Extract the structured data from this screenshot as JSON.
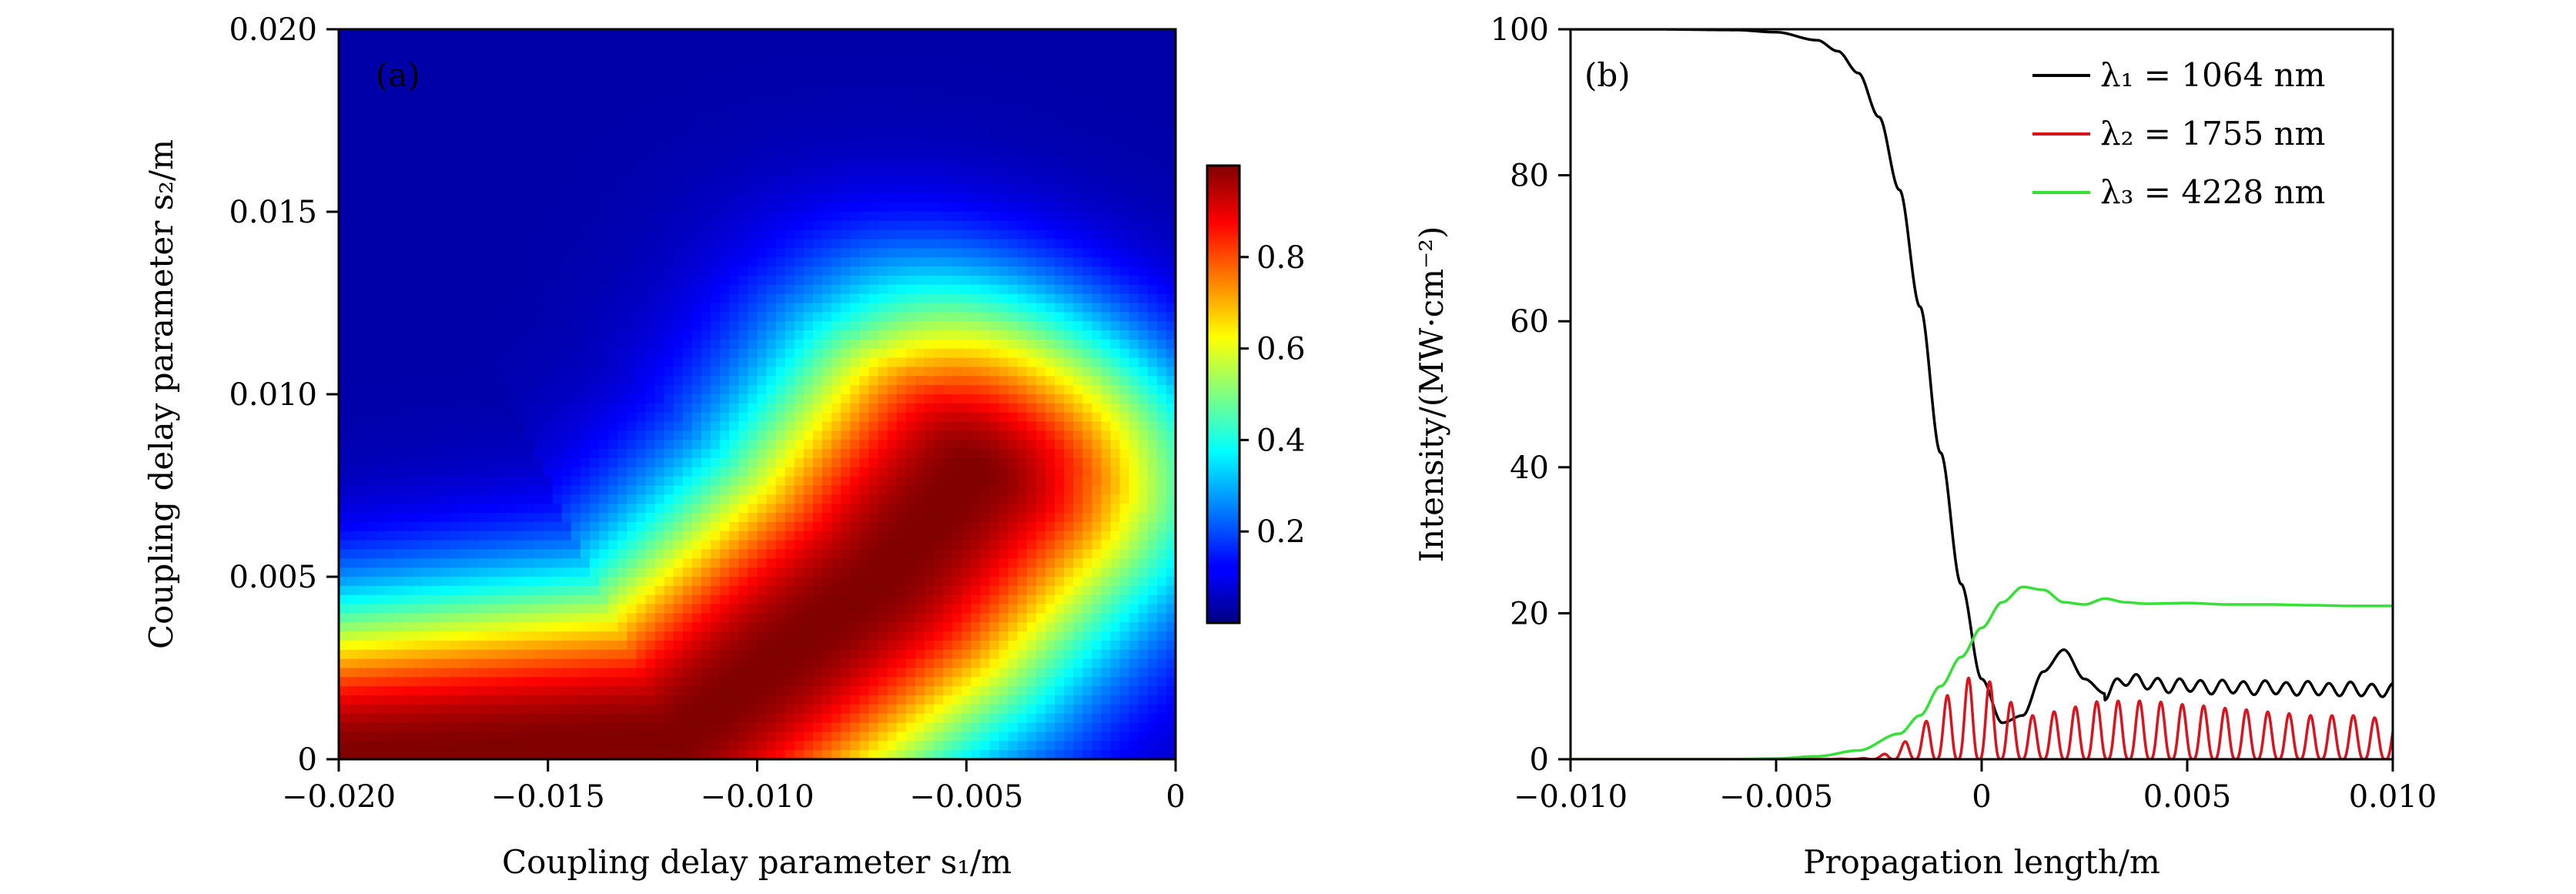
{
  "chart_data": [
    {
      "type": "heatmap",
      "panel_label": "(a)",
      "xlabel": "Coupling delay parameter s₁/m",
      "ylabel": "Coupling delay parameter s₂/m",
      "xlim": [
        -0.02,
        0
      ],
      "ylim": [
        0,
        0.02
      ],
      "x_ticks": [
        "−0.020",
        "−0.015",
        "−0.010",
        "−0.005",
        "0"
      ],
      "x_tick_values": [
        -0.02,
        -0.015,
        -0.01,
        -0.005,
        0
      ],
      "y_ticks": [
        "0",
        "0.005",
        "0.010",
        "0.015",
        "0.020"
      ],
      "y_tick_values": [
        0,
        0.005,
        0.01,
        0.015,
        0.02
      ],
      "colorbar": {
        "range": [
          0,
          1
        ],
        "ticks": [
          "0.2",
          "0.4",
          "0.6",
          "0.8"
        ],
        "tick_values": [
          0.2,
          0.4,
          0.6,
          0.8
        ],
        "colormap": "jet"
      },
      "description_of_field": {
        "ridge_points": [
          [
            -0.02,
            0
          ],
          [
            -0.012,
            0.0005
          ],
          [
            -0.007,
            0.005
          ],
          [
            -0.004,
            0.009
          ],
          [
            -0.003,
            0.0105
          ]
        ],
        "peak_value": 1.0
      }
    },
    {
      "type": "line",
      "panel_label": "(b)",
      "xlabel": "Propagation length/m",
      "ylabel": "Intensity/(MW·cm⁻²)",
      "xlim": [
        -0.01,
        0.01
      ],
      "ylim": [
        0,
        100
      ],
      "x_ticks": [
        "−0.010",
        "−0.005",
        "0",
        "0.005",
        "0.010"
      ],
      "x_tick_values": [
        -0.01,
        -0.005,
        0,
        0.005,
        0.01
      ],
      "y_ticks": [
        "0",
        "20",
        "40",
        "60",
        "80",
        "100"
      ],
      "y_tick_values": [
        0,
        20,
        40,
        60,
        80,
        100
      ],
      "legend_position": "top-right",
      "series": [
        {
          "name": "λ₁ = 1064 nm",
          "color": "#000000",
          "x": [
            -0.01,
            -0.008,
            -0.006,
            -0.005,
            -0.004,
            -0.0035,
            -0.003,
            -0.0025,
            -0.002,
            -0.0015,
            -0.001,
            -0.0005,
            0,
            0.0005,
            0.001,
            0.0015,
            0.002,
            0.0025,
            0.003,
            0.0035,
            0.004,
            0.0045,
            0.005,
            0.0055,
            0.006,
            0.0065,
            0.007,
            0.0075,
            0.008,
            0.0085,
            0.009,
            0.0095,
            0.01
          ],
          "y": [
            100,
            100,
            99.9,
            99.6,
            98.5,
            97,
            94,
            88,
            78,
            62,
            42,
            24,
            11,
            5,
            6,
            12,
            15,
            11,
            9,
            11,
            10.5,
            10,
            10.2,
            9.8,
            10,
            9.7,
            9.9,
            9.6,
            9.8,
            9.5,
            9.7,
            9.4,
            9.5
          ]
        },
        {
          "name": "λ₂ = 1755 nm",
          "color": "#d8141e",
          "x": [
            -0.01,
            -0.004,
            -0.003,
            -0.0025,
            -0.002,
            -0.0015,
            -0.001,
            -0.0005,
            0,
            0.0005,
            0.001,
            0.0015,
            0.002,
            0.003,
            0.004,
            0.005,
            0.006,
            0.007,
            0.008,
            0.009,
            0.01
          ],
          "y": [
            0,
            0,
            0.1,
            0.5,
            2,
            4.5,
            8,
            11,
            11.5,
            9,
            6,
            6,
            7,
            8,
            8,
            7.5,
            7,
            6.5,
            6,
            6,
            5.5
          ],
          "oscillating": true
        },
        {
          "name": "λ₃ = 4228 nm",
          "color": "#36e036",
          "x": [
            -0.01,
            -0.006,
            -0.005,
            -0.004,
            -0.003,
            -0.002,
            -0.0015,
            -0.001,
            -0.0005,
            0,
            0.0005,
            0.001,
            0.0015,
            0.002,
            0.0025,
            0.003,
            0.0035,
            0.004,
            0.005,
            0.006,
            0.007,
            0.008,
            0.009,
            0.01
          ],
          "y": [
            0,
            0,
            0.1,
            0.4,
            1.2,
            3.5,
            6,
            10,
            14,
            18,
            21.5,
            23.6,
            23.2,
            21.5,
            21.2,
            22,
            21.5,
            21.3,
            21.4,
            21.2,
            21.2,
            21.1,
            21,
            21
          ]
        }
      ]
    }
  ]
}
